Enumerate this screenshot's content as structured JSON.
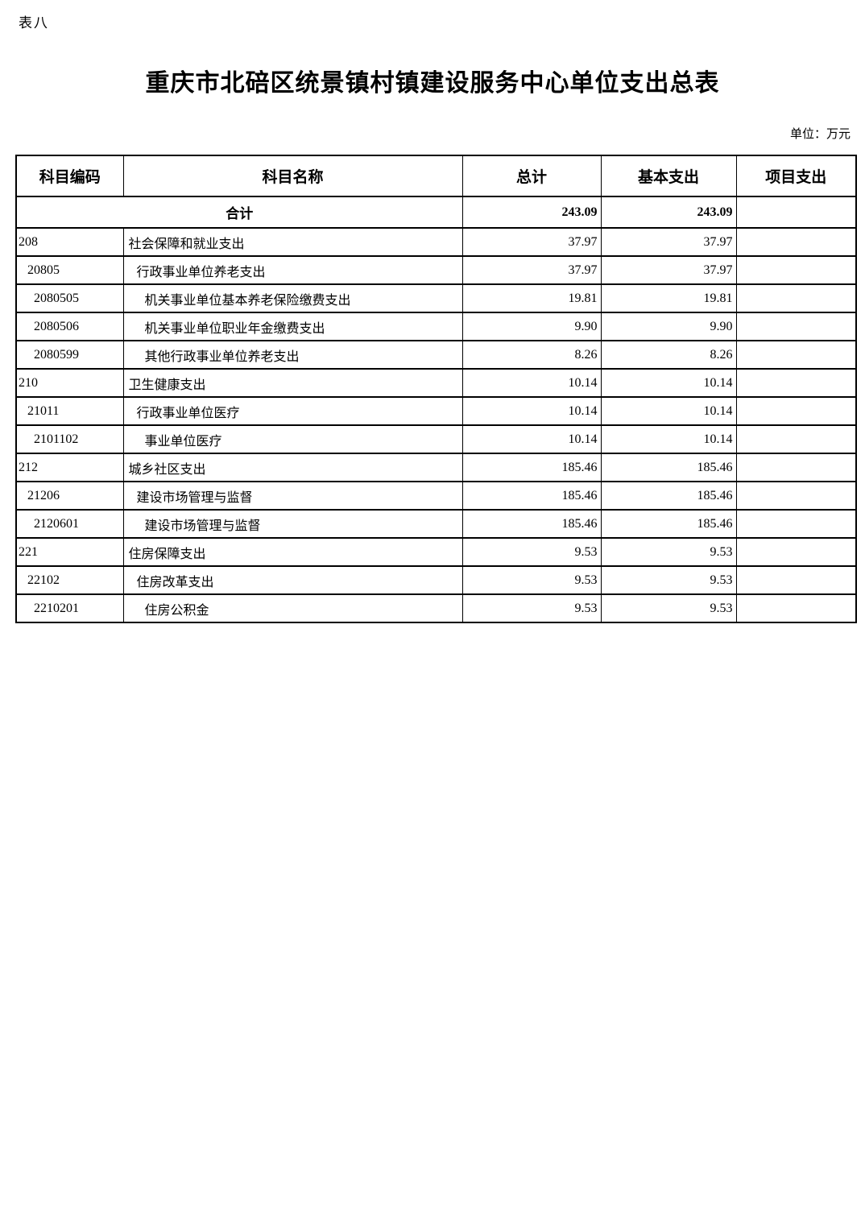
{
  "page": {
    "sheet_label": "表八",
    "title": "重庆市北碚区统景镇村镇建设服务中心单位支出总表",
    "unit_note": "单位：万元"
  },
  "table": {
    "headers": [
      "科目编码",
      "科目名称",
      "总计",
      "基本支出",
      "项目支出"
    ],
    "total_row": {
      "name": "合计",
      "total": "243.09",
      "basic": "243.09",
      "project": ""
    },
    "rows": [
      {
        "code": "208",
        "indent": 0,
        "name": "社会保障和就业支出",
        "total": "37.97",
        "basic": "37.97",
        "project": ""
      },
      {
        "code": "20805",
        "indent": 1,
        "name": "行政事业单位养老支出",
        "total": "37.97",
        "basic": "37.97",
        "project": ""
      },
      {
        "code": "2080505",
        "indent": 2,
        "name": "机关事业单位基本养老保险缴费支出",
        "total": "19.81",
        "basic": "19.81",
        "project": ""
      },
      {
        "code": "2080506",
        "indent": 2,
        "name": "机关事业单位职业年金缴费支出",
        "total": "9.90",
        "basic": "9.90",
        "project": ""
      },
      {
        "code": "2080599",
        "indent": 2,
        "name": "其他行政事业单位养老支出",
        "total": "8.26",
        "basic": "8.26",
        "project": ""
      },
      {
        "code": "210",
        "indent": 0,
        "name": "卫生健康支出",
        "total": "10.14",
        "basic": "10.14",
        "project": ""
      },
      {
        "code": "21011",
        "indent": 1,
        "name": "行政事业单位医疗",
        "total": "10.14",
        "basic": "10.14",
        "project": ""
      },
      {
        "code": "2101102",
        "indent": 2,
        "name": "事业单位医疗",
        "total": "10.14",
        "basic": "10.14",
        "project": ""
      },
      {
        "code": "212",
        "indent": 0,
        "name": "城乡社区支出",
        "total": "185.46",
        "basic": "185.46",
        "project": ""
      },
      {
        "code": "21206",
        "indent": 1,
        "name": "建设市场管理与监督",
        "total": "185.46",
        "basic": "185.46",
        "project": ""
      },
      {
        "code": "2120601",
        "indent": 2,
        "name": "建设市场管理与监督",
        "total": "185.46",
        "basic": "185.46",
        "project": ""
      },
      {
        "code": "221",
        "indent": 0,
        "name": "住房保障支出",
        "total": "9.53",
        "basic": "9.53",
        "project": ""
      },
      {
        "code": "22102",
        "indent": 1,
        "name": "住房改革支出",
        "total": "9.53",
        "basic": "9.53",
        "project": ""
      },
      {
        "code": "2210201",
        "indent": 2,
        "name": "住房公积金",
        "total": "9.53",
        "basic": "9.53",
        "project": ""
      }
    ]
  },
  "colors": {
    "text": "#000000",
    "border": "#000000",
    "background": "#ffffff"
  }
}
